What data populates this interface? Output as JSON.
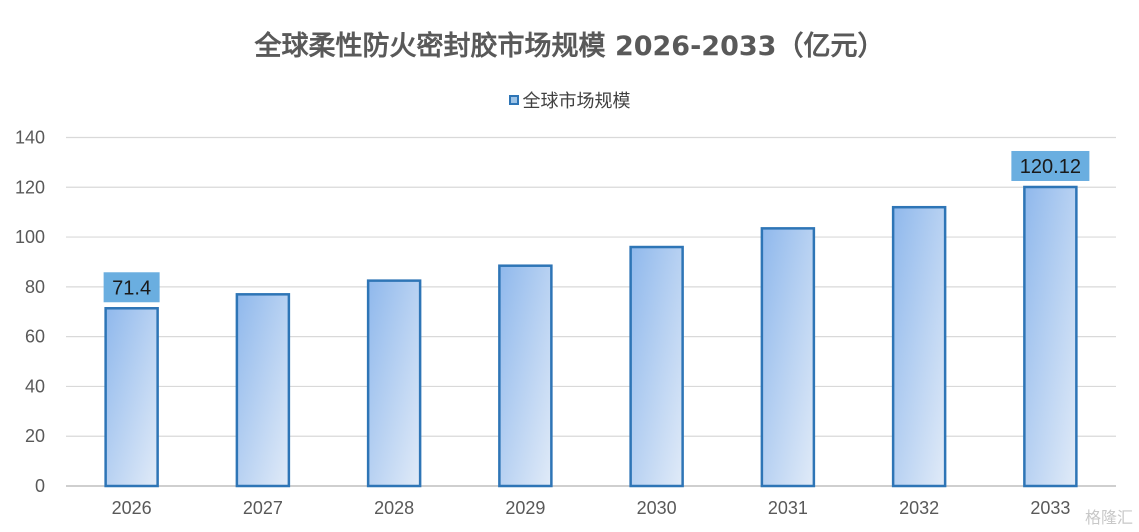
{
  "chart_data": {
    "type": "bar",
    "title": "全球柔性防火密封胶市场规模 2026-2033（亿元）",
    "categories": [
      "2026",
      "2027",
      "2028",
      "2029",
      "2030",
      "2031",
      "2032",
      "2033"
    ],
    "series": [
      {
        "name": "全球市场规模",
        "values": [
          71.4,
          77,
          82.5,
          88.5,
          96,
          103.5,
          112,
          120.12
        ]
      }
    ],
    "data_labels": [
      {
        "category_index": 0,
        "text": "71.4"
      },
      {
        "category_index": 7,
        "text": "120.12"
      }
    ],
    "ylim": [
      0,
      140
    ],
    "yticks": [
      "0",
      "20",
      "40",
      "60",
      "80",
      "100",
      "120",
      "140"
    ],
    "grid": true,
    "legend_position": "top-center",
    "colors": {
      "bar_fill_top": "#8FB8EC",
      "bar_fill_bottom": "#E1EBF8",
      "bar_stroke": "#2E75B6",
      "label_bg": "#6AAEE0",
      "grid": "#D9D9D9",
      "axis_text": "#595959"
    }
  },
  "watermark": "格隆汇"
}
